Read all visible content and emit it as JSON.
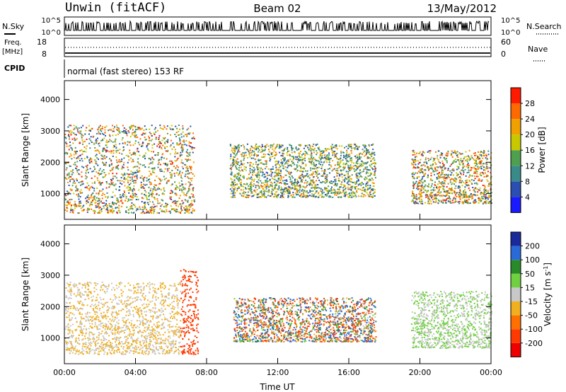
{
  "header": {
    "station": "Unwin (fitACF)",
    "beam": "Beam 02",
    "date": "13/May/2012"
  },
  "params": {
    "nsky_label": "N.Sky",
    "nsky_ticks": [
      "10^5",
      "10^0"
    ],
    "nsearch_label": "N.Search",
    "nsearch_ticks": [
      "10^5",
      "10^0"
    ],
    "freq_label": "Freq.",
    "freq_unit": "[MHz]",
    "freq_ticks": [
      "18",
      "8"
    ],
    "nave_label": "Nave",
    "nave_ticks": [
      "60",
      "0"
    ],
    "cpid_label": "CPID",
    "cpid_text": "normal (fast stereo) 153 RF"
  },
  "chart_data": [
    {
      "type": "heatmap",
      "title": "",
      "xlabel": "Time UT",
      "ylabel": "Slant Range [km]",
      "x_ticks": [
        "00:00",
        "04:00",
        "08:00",
        "12:00",
        "16:00",
        "20:00",
        "00:00"
      ],
      "y_ticks": [
        "1000",
        "2000",
        "3000",
        "4000"
      ],
      "xlim_hours": [
        0,
        24
      ],
      "ylim_km": [
        180,
        4600
      ],
      "colorbar": {
        "label": "Power [dB]",
        "ticks": [
          "4",
          "8",
          "12",
          "16",
          "20",
          "24",
          "28"
        ],
        "range": [
          0,
          30
        ],
        "colors": [
          "#1a1aff",
          "#2a4fb0",
          "#3a8a8a",
          "#4ea04e",
          "#c8c800",
          "#f0a000",
          "#ff6a00",
          "#ff1a00"
        ]
      },
      "features": [
        {
          "t_start": 0.0,
          "t_end": 7.3,
          "range_km": [
            400,
            3200
          ],
          "power_db": [
            4,
            28
          ]
        },
        {
          "t_start": 9.3,
          "t_end": 17.5,
          "range_km": [
            900,
            2600
          ],
          "power_db": [
            4,
            24
          ]
        },
        {
          "t_start": 19.5,
          "t_end": 24.0,
          "range_km": [
            700,
            2400
          ],
          "power_db": [
            4,
            28
          ]
        }
      ]
    },
    {
      "type": "heatmap",
      "title": "",
      "xlabel": "Time UT",
      "ylabel": "Slant Range [km]",
      "x_ticks": [
        "00:00",
        "04:00",
        "08:00",
        "12:00",
        "16:00",
        "20:00",
        "00:00"
      ],
      "y_ticks": [
        "1000",
        "2000",
        "3000",
        "4000"
      ],
      "xlim_hours": [
        0,
        24
      ],
      "ylim_km": [
        180,
        4600
      ],
      "colorbar": {
        "label": "Velocity [m s^-1]",
        "ticks": [
          "200",
          "100",
          "50",
          "15",
          "-15",
          "-50",
          "-100",
          "-200"
        ],
        "range": [
          -250,
          250
        ],
        "colors": [
          "#1a2a9a",
          "#2a6ad8",
          "#2a8a2a",
          "#70d040",
          "#c8c8c8",
          "#f0b020",
          "#ff7000",
          "#ff3a00",
          "#ee0000"
        ]
      },
      "features": [
        {
          "t_start": 0.0,
          "t_end": 6.5,
          "range_km": [
            500,
            2800
          ],
          "velocity_ms": [
            -50,
            15
          ]
        },
        {
          "t_start": 6.5,
          "t_end": 7.5,
          "range_km": [
            500,
            3200
          ],
          "velocity_ms": [
            -200,
            -100
          ]
        },
        {
          "t_start": 9.5,
          "t_end": 17.5,
          "range_km": [
            900,
            2300
          ],
          "velocity_ms": [
            -200,
            200
          ]
        },
        {
          "t_start": 19.5,
          "t_end": 24.0,
          "range_km": [
            700,
            2500
          ],
          "velocity_ms": [
            -15,
            50
          ]
        }
      ]
    }
  ]
}
